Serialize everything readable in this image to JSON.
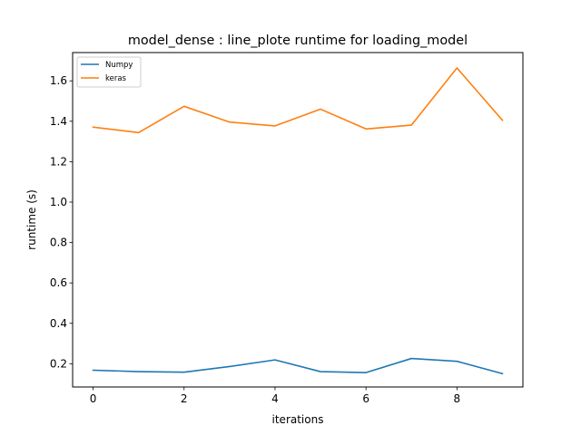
{
  "chart_data": {
    "type": "line",
    "title": "model_dense : line_plote runtime  for loading_model",
    "xlabel": "iterations",
    "ylabel": "runtime (s)",
    "xlim": [
      -0.45,
      9.45
    ],
    "ylim": [
      0.085,
      1.74
    ],
    "x_ticks": [
      0,
      2,
      4,
      6,
      8
    ],
    "y_ticks": [
      0.2,
      0.4,
      0.6,
      0.8,
      1.0,
      1.2,
      1.4,
      1.6
    ],
    "x": [
      0,
      1,
      2,
      3,
      4,
      5,
      6,
      7,
      8,
      9
    ],
    "series": [
      {
        "name": "Numpy",
        "color": "#1f77b4",
        "values": [
          0.168,
          0.161,
          0.158,
          0.186,
          0.219,
          0.161,
          0.156,
          0.226,
          0.212,
          0.151
        ]
      },
      {
        "name": "keras",
        "color": "#ff7f0e",
        "values": [
          1.371,
          1.344,
          1.474,
          1.396,
          1.377,
          1.46,
          1.362,
          1.381,
          1.664,
          1.405
        ]
      }
    ],
    "grid": false,
    "legend_position": "top-left"
  }
}
